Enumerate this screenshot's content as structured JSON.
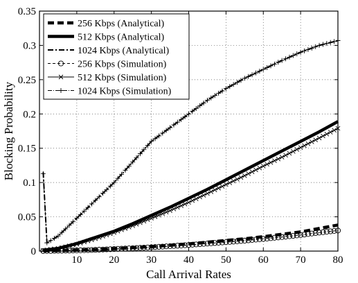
{
  "chart_data": {
    "type": "line",
    "title": "",
    "xlabel": "Call Arrival Rates",
    "ylabel": "Blocking Probability",
    "xlim": [
      0,
      80
    ],
    "ylim": [
      0,
      0.35
    ],
    "xticks": [
      10,
      20,
      30,
      40,
      50,
      60,
      70,
      80
    ],
    "xtick_labels": [
      "10",
      "20",
      "30",
      "40",
      "50",
      "60",
      "70",
      "80"
    ],
    "yticks": [
      0,
      0.05,
      0.1,
      0.15,
      0.2,
      0.25,
      0.3,
      0.35
    ],
    "ytick_labels": [
      "0",
      "0.05",
      "0.1",
      "0.15",
      "0.2",
      "0.25",
      "0.3",
      "0.35"
    ],
    "grid": true,
    "legend_position": "top-left",
    "x": [
      1,
      2,
      5,
      10,
      15,
      20,
      25,
      30,
      35,
      40,
      45,
      50,
      55,
      60,
      65,
      70,
      75,
      80
    ],
    "series": [
      {
        "name": "256 Kbps (Analytical)",
        "style": "bold-dashed",
        "values": [
          0.0002,
          0.0004,
          0.0007,
          0.0012,
          0.0022,
          0.0035,
          0.0048,
          0.0065,
          0.0085,
          0.0105,
          0.013,
          0.0155,
          0.018,
          0.021,
          0.0245,
          0.028,
          0.033,
          0.038
        ]
      },
      {
        "name": "512 Kbps (Analytical)",
        "style": "bold-solid",
        "values": [
          0.001,
          0.002,
          0.004,
          0.011,
          0.02,
          0.029,
          0.04,
          0.052,
          0.064,
          0.077,
          0.09,
          0.104,
          0.118,
          0.132,
          0.146,
          0.16,
          0.174,
          0.189
        ]
      },
      {
        "name": "1024 Kbps (Analytical)",
        "style": "dash-dot",
        "values": [
          0.115,
          0.012,
          0.022,
          0.048,
          0.074,
          0.1,
          0.13,
          0.16,
          0.18,
          0.2,
          0.22,
          0.237,
          0.252,
          0.265,
          0.278,
          0.29,
          0.3,
          0.307
        ]
      },
      {
        "name": "256 Kbps (Simulation)",
        "style": "dashed-circle",
        "values": [
          0.0001,
          0.0002,
          0.0005,
          0.001,
          0.0018,
          0.003,
          0.0042,
          0.0056,
          0.0072,
          0.0089,
          0.011,
          0.013,
          0.0152,
          0.0178,
          0.0205,
          0.0235,
          0.027,
          0.03
        ]
      },
      {
        "name": "512 Kbps (Simulation)",
        "style": "solid-x",
        "values": [
          0.001,
          0.002,
          0.004,
          0.01,
          0.018,
          0.027,
          0.037,
          0.048,
          0.059,
          0.071,
          0.084,
          0.097,
          0.11,
          0.124,
          0.137,
          0.151,
          0.165,
          0.179
        ]
      },
      {
        "name": "1024 Kbps (Simulation)",
        "style": "dash-dot-plus",
        "values": [
          0.113,
          0.012,
          0.022,
          0.048,
          0.074,
          0.1,
          0.13,
          0.16,
          0.18,
          0.2,
          0.22,
          0.237,
          0.252,
          0.265,
          0.278,
          0.29,
          0.3,
          0.307
        ]
      }
    ]
  }
}
